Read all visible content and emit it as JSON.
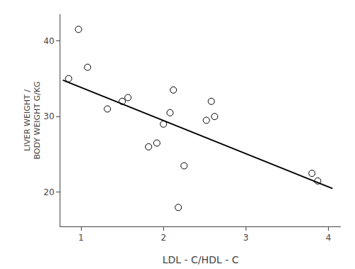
{
  "chart_data": {
    "type": "scatter",
    "xlabel": "LDL - C/HDL - C",
    "ylabel": "LIVER WEIGHT /\nBODY WEIGHT G/KG",
    "series": [
      {
        "type": "scatter",
        "marker": "circle",
        "color": "white",
        "x": [
          0.85,
          0.97,
          1.08,
          1.32,
          1.5,
          1.57,
          1.82,
          1.92,
          2.0,
          2.08,
          2.12,
          2.18,
          2.25,
          2.52,
          2.58,
          2.62,
          3.8,
          3.87
        ],
        "values": [
          35.0,
          41.5,
          36.5,
          31.0,
          32.0,
          32.5,
          26.0,
          26.5,
          29.0,
          30.5,
          33.5,
          18.0,
          23.5,
          29.5,
          32.0,
          30.0,
          22.5,
          21.5
        ]
      },
      {
        "type": "line",
        "line_style": "solid",
        "color": "black",
        "x": [
          0.78,
          4.05
        ],
        "values": [
          34.8,
          20.5
        ]
      }
    ],
    "xlim": [
      0.75,
      4.15
    ],
    "ylim": [
      15.5,
      43.5
    ],
    "xticks": [
      1,
      2,
      3,
      4
    ],
    "yticks": [
      20,
      30,
      40
    ],
    "grid": false
  }
}
